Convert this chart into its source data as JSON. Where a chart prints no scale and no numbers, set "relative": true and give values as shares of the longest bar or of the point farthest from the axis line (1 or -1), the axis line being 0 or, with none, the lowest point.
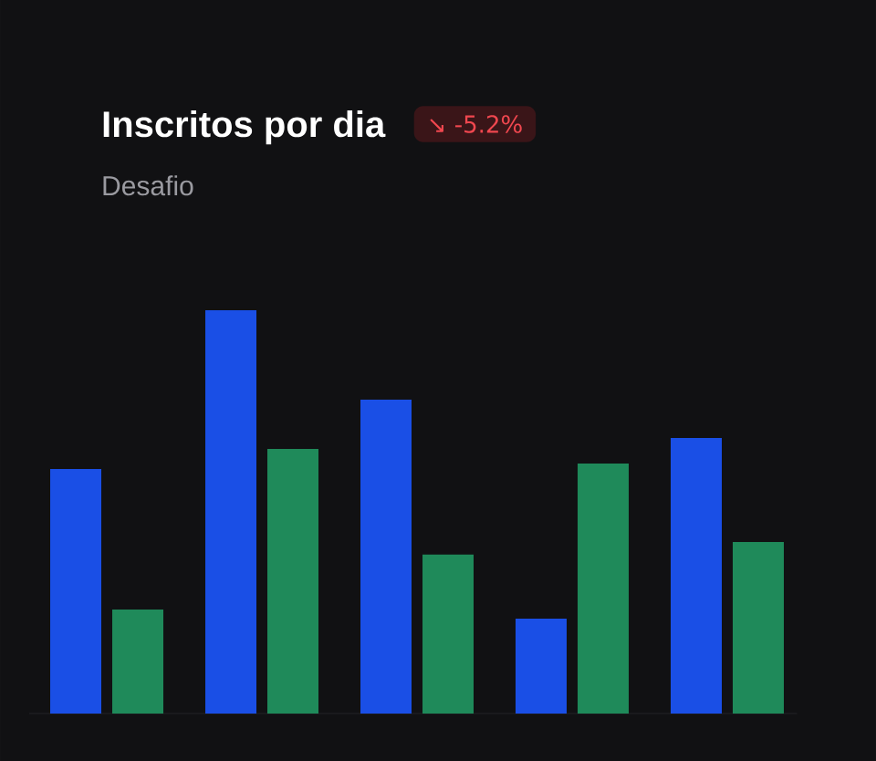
{
  "chart_data": {
    "type": "bar",
    "title": "Inscritos por dia",
    "subtitle": "Desafio",
    "annotations": [
      "↘ -5.2%"
    ],
    "categories": [
      null,
      null,
      null,
      null,
      null
    ],
    "relative": true,
    "series": [
      {
        "color": "#1a4fe6",
        "values": [
          0.606,
          1,
          0.778,
          0.235,
          0.683
        ]
      },
      {
        "color": "#1f8a5a",
        "values": [
          0.258,
          0.656,
          0.394,
          0.62,
          0.425
        ]
      }
    ]
  }
}
